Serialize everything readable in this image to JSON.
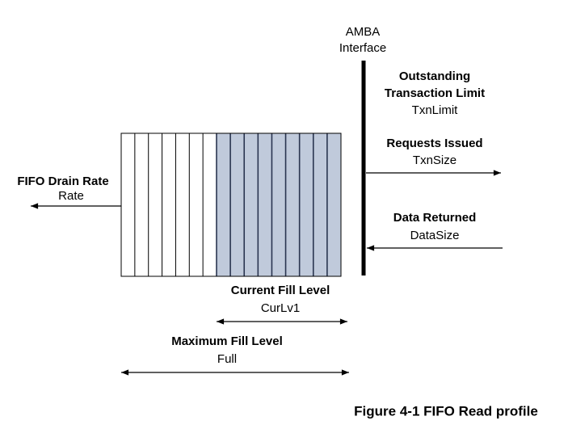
{
  "interface": {
    "lines": [
      "AMBA",
      "Interface"
    ]
  },
  "outstanding": {
    "title_lines": [
      "Outstanding",
      "Transaction Limit"
    ],
    "variable": "TxnLimit"
  },
  "requests": {
    "title": "Requests Issued",
    "variable": "TxnSize"
  },
  "returned": {
    "title": "Data Returned",
    "variable": "DataSize"
  },
  "drain": {
    "title": "FIFO Drain Rate",
    "variable": "Rate"
  },
  "current": {
    "title": "Current Fill Level",
    "variable": "CurLv1"
  },
  "maximum": {
    "title": "Maximum Fill Level",
    "variable": "Full"
  },
  "caption": "Figure 4-1 FIFO Read profile"
}
